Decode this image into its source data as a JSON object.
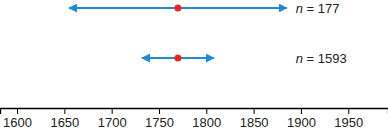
{
  "chart_data": {
    "type": "interval",
    "categories": [
      "n = 177",
      "n = 1593"
    ],
    "values": [
      1770,
      1770
    ],
    "lower": [
      1655,
      1732
    ],
    "upper": [
      1885,
      1808
    ],
    "color": "#1f8ad2",
    "marker": "circle",
    "xlim": [
      1582,
      1992
    ],
    "xticks": [
      1600,
      1650,
      1700,
      1750,
      1800,
      1850,
      1900,
      1950
    ]
  }
}
